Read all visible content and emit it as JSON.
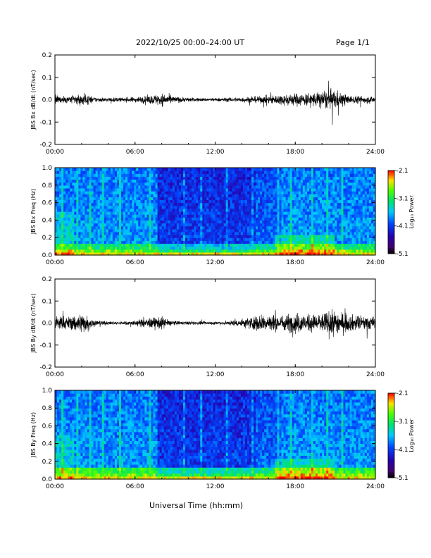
{
  "header": {
    "title": "2022/10/25  00:00–24:00 UT",
    "page": "Page 1/1"
  },
  "x_axis": {
    "label": "Universal Time (hh:mm)",
    "ticks": [
      "00:00",
      "06:00",
      "12:00",
      "18:00",
      "24:00"
    ]
  },
  "chart_data": [
    {
      "type": "line",
      "ylabel": "JBS Bx dB/dt (nT/sec)",
      "ylim": [
        -0.2,
        0.2
      ],
      "yticks": [
        "0.2",
        "0.1",
        "0.0",
        "-0.1",
        "-0.2"
      ],
      "xlim": [
        "00:00",
        "24:00"
      ],
      "envelope": {
        "x": [
          "00:00",
          "01:00",
          "02:00",
          "03:00",
          "04:00",
          "05:00",
          "06:00",
          "07:00",
          "08:00",
          "09:00",
          "10:00",
          "11:00",
          "12:00",
          "13:00",
          "14:00",
          "15:00",
          "16:00",
          "17:00",
          "18:00",
          "19:00",
          "20:00",
          "21:00",
          "22:00",
          "23:00",
          "24:00"
        ],
        "amplitude": [
          0.02,
          0.015,
          0.03,
          0.012,
          0.01,
          0.01,
          0.012,
          0.018,
          0.03,
          0.015,
          0.01,
          0.008,
          0.008,
          0.01,
          0.012,
          0.015,
          0.018,
          0.025,
          0.03,
          0.03,
          0.04,
          0.045,
          0.02,
          0.018,
          0.015
        ]
      }
    },
    {
      "type": "heatmap",
      "ylabel": "JBS Bx Freq (Hz)",
      "ylim": [
        0.0,
        1.0
      ],
      "yticks": [
        "1.0",
        "0.8",
        "0.6",
        "0.4",
        "0.2",
        "0.0"
      ],
      "colorbar": {
        "label": "Log₁₀ Power",
        "range": [
          -5.1,
          -2.1
        ],
        "ticks": [
          "-2.1",
          "-3.1",
          "-4.1",
          "-5.1"
        ]
      }
    },
    {
      "type": "line",
      "ylabel": "JBS By dB/dt (nT/sec)",
      "ylim": [
        -0.2,
        0.2
      ],
      "yticks": [
        "0.2",
        "0.1",
        "0.0",
        "-0.1",
        "-0.2"
      ],
      "xlim": [
        "00:00",
        "24:00"
      ],
      "envelope": {
        "x": [
          "00:00",
          "01:00",
          "02:00",
          "03:00",
          "04:00",
          "05:00",
          "06:00",
          "07:00",
          "08:00",
          "09:00",
          "10:00",
          "11:00",
          "12:00",
          "13:00",
          "14:00",
          "15:00",
          "16:00",
          "17:00",
          "18:00",
          "19:00",
          "20:00",
          "21:00",
          "22:00",
          "23:00",
          "24:00"
        ],
        "amplitude": [
          0.04,
          0.03,
          0.05,
          0.015,
          0.008,
          0.008,
          0.012,
          0.025,
          0.03,
          0.01,
          0.008,
          0.008,
          0.008,
          0.01,
          0.02,
          0.035,
          0.045,
          0.035,
          0.05,
          0.04,
          0.045,
          0.06,
          0.04,
          0.035,
          0.03
        ]
      }
    },
    {
      "type": "heatmap",
      "ylabel": "JBS By Freq (Hz)",
      "ylim": [
        0.0,
        1.0
      ],
      "yticks": [
        "1.0",
        "0.8",
        "0.6",
        "0.4",
        "0.2",
        "0.0"
      ],
      "colorbar": {
        "label": "Log₁₀ Power",
        "range": [
          -5.1,
          -2.1
        ],
        "ticks": [
          "-2.1",
          "-3.1",
          "-4.1",
          "-5.1"
        ]
      }
    }
  ]
}
